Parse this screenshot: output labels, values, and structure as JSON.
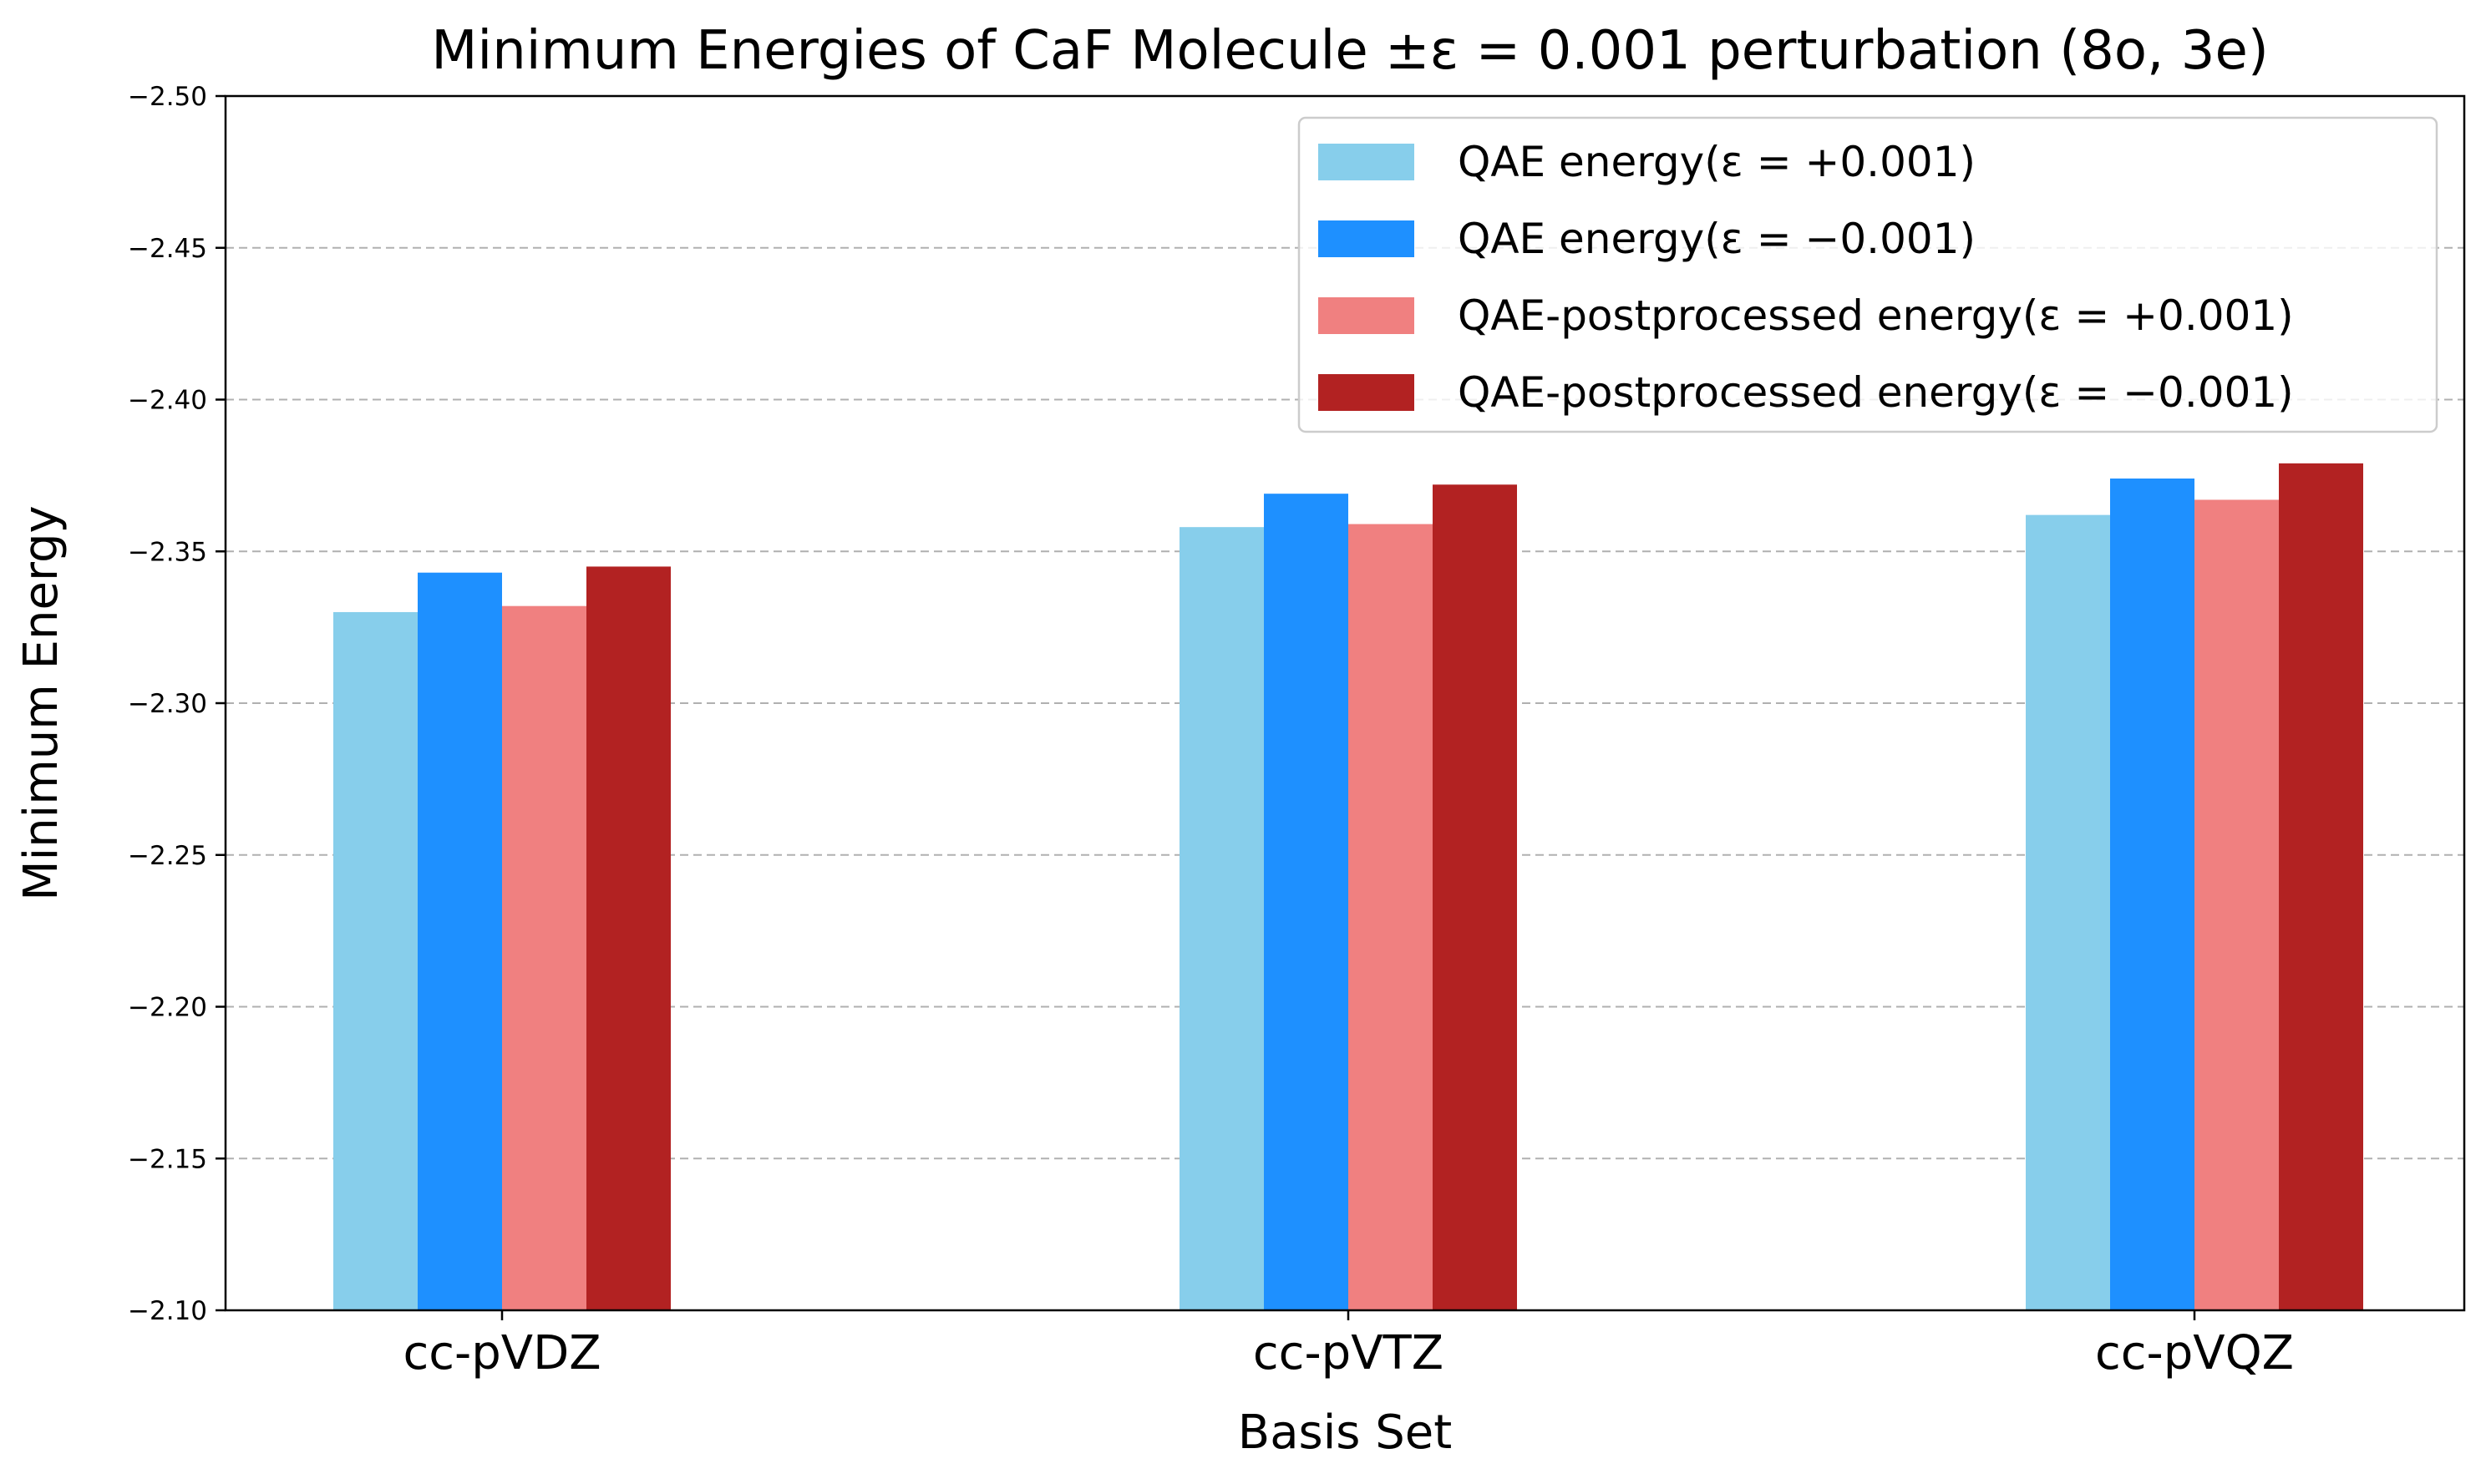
{
  "chart_data": {
    "type": "bar",
    "title": "Minimum Energies of CaF Molecule ±ε = 0.001 perturbation (8o, 3e)",
    "xlabel": "Basis Set",
    "ylabel": "Minimum Energy",
    "categories": [
      "cc-pVDZ",
      "cc-pVTZ",
      "cc-pVQZ"
    ],
    "y_axis_inverted": true,
    "ylim": [
      -2.5,
      -2.1
    ],
    "yticks": [
      -2.5,
      -2.45,
      -2.4,
      -2.35,
      -2.3,
      -2.25,
      -2.2,
      -2.15,
      -2.1
    ],
    "ytick_labels": [
      "−2.50",
      "−2.45",
      "−2.40",
      "−2.35",
      "−2.30",
      "−2.25",
      "−2.20",
      "−2.15",
      "−2.10"
    ],
    "grid": "y-dashed",
    "legend_position": "top-right",
    "series": [
      {
        "name": "QAE energy(ε = +0.001)",
        "color": "#87CEEB",
        "values": [
          -2.33,
          -2.358,
          -2.362
        ]
      },
      {
        "name": "QAE energy(ε = −0.001)",
        "color": "#1E90FF",
        "values": [
          -2.343,
          -2.369,
          -2.374
        ]
      },
      {
        "name": "QAE-postprocessed energy(ε = +0.001)",
        "color": "#F08080",
        "values": [
          -2.332,
          -2.359,
          -2.367
        ]
      },
      {
        "name": "QAE-postprocessed energy(ε = −0.001)",
        "color": "#B22222",
        "values": [
          -2.345,
          -2.372,
          -2.379
        ]
      }
    ]
  }
}
